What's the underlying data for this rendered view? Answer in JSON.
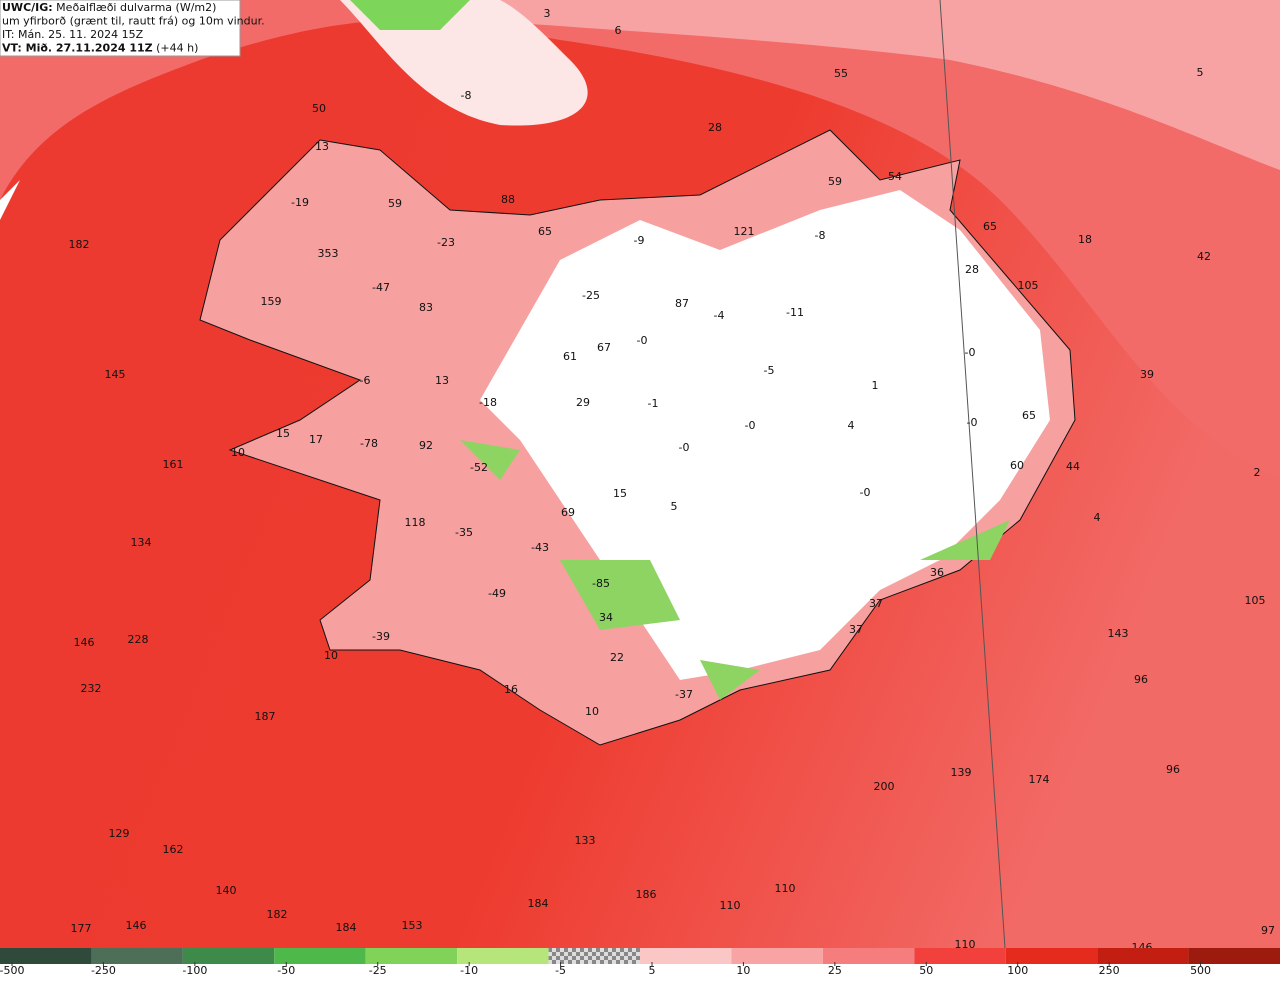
{
  "header": {
    "lines": [
      {
        "bold": "UWC/IG:",
        "text": " Meðalflæði dulvarma (W/m2)"
      },
      {
        "bold": "",
        "text": "um yfirborð (grænt til, rautt frá) og 10m vindur."
      },
      {
        "bold": "",
        "text": "IT: Mán. 25. 11. 2024 15Z"
      },
      {
        "bold": "VT: Mið. 27.11.2024 11Z",
        "text": " (+44 h)"
      }
    ]
  },
  "map": {
    "labels": [
      "3",
      "6",
      "55",
      "5",
      "-8",
      "50",
      "28",
      "13",
      "59",
      "54",
      "88",
      "-19",
      "59",
      "-9",
      "121",
      "-8",
      "65",
      "65",
      "18",
      "182",
      "-23",
      "353",
      "42",
      "28",
      "105",
      "-47",
      "-25",
      "159",
      "83",
      "87",
      "-4",
      "-11",
      "-0",
      "67",
      "-0",
      "61",
      "-5",
      "145",
      "-6",
      "13",
      "39",
      "1",
      "29",
      "-18",
      "-1",
      "65",
      "-0",
      "4",
      "-0",
      "15",
      "17",
      "-78",
      "92",
      "-0",
      "10",
      "161",
      "-52",
      "60",
      "44",
      "2",
      "15",
      "-0",
      "5",
      "69",
      "4",
      "118",
      "-35",
      "134",
      "-43",
      "36",
      "-85",
      "-49",
      "37",
      "105",
      "34",
      "37",
      "143",
      "146",
      "228",
      "-39",
      "10",
      "22",
      "96",
      "232",
      "16",
      "-37",
      "187",
      "10",
      "139",
      "200",
      "174",
      "96",
      "129",
      "133",
      "162",
      "140",
      "110",
      "186",
      "184",
      "110",
      "182",
      "177",
      "146",
      "184",
      "153",
      "97",
      "110",
      "146"
    ]
  },
  "colorbar": {
    "ticks": [
      -500,
      -250,
      -100,
      -50,
      -25,
      -10,
      -5,
      5,
      10,
      25,
      50,
      100,
      250,
      500
    ],
    "colors": [
      "#2f4a3b",
      "#4d6e57",
      "#3d8a4b",
      "#4eb84b",
      "#80d259",
      "#b6e67b",
      "checker",
      "#fbc6c6",
      "#f9a4a4",
      "#f67d7d",
      "#f2403d",
      "#e52b1d",
      "#c21e12",
      "#9d1a0e"
    ]
  }
}
